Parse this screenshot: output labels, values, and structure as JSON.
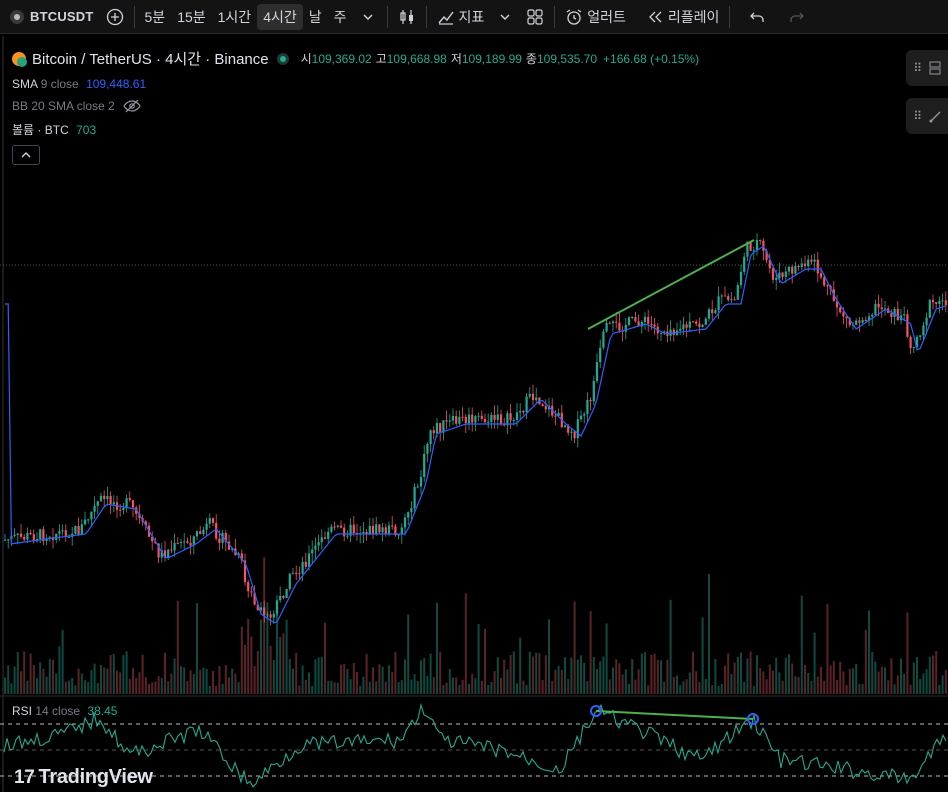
{
  "toolbar": {
    "symbol": "BTCUSDT",
    "intervals": [
      "5분",
      "15분",
      "1시간",
      "4시간",
      "날",
      "주"
    ],
    "active_interval": "4시간",
    "indicators_label": "지표",
    "alert_label": "얼러트",
    "replay_label": "리플레이"
  },
  "legend": {
    "title": "Bitcoin / TetherUS · 4시간 · Binance",
    "open_label": "시",
    "open": "109,369.02",
    "high_label": "고",
    "high": "109,668.98",
    "low_label": "저",
    "low": "109,189.99",
    "close_label": "종",
    "close": "109,535.70",
    "change": "+166.68 (+0.15%)",
    "sma_name": "SMA",
    "sma_params": "9 close",
    "sma_value": "109,448.61",
    "bb_label": "BB 20 SMA close 2",
    "volume_name": "볼륨 · BTC",
    "volume_value": "703",
    "rsi_name": "RSI",
    "rsi_params": "14 close",
    "rsi_value": "38.45"
  },
  "branding": {
    "logo_text": "TradingView"
  },
  "colors": {
    "up": "#22ab94",
    "down": "#f7525f",
    "sma": "#2962ff",
    "rsi": "#22ab94",
    "trendline": "#4caf50",
    "bitcoin": "#f7931a"
  },
  "icons": [
    "add-icon",
    "chevron-down-icon",
    "candles-icon",
    "indicators-icon",
    "layout-grid-icon",
    "alarm-icon",
    "replay-icon",
    "undo-icon",
    "redo-icon",
    "eye-off-icon",
    "chevron-up-icon"
  ]
}
